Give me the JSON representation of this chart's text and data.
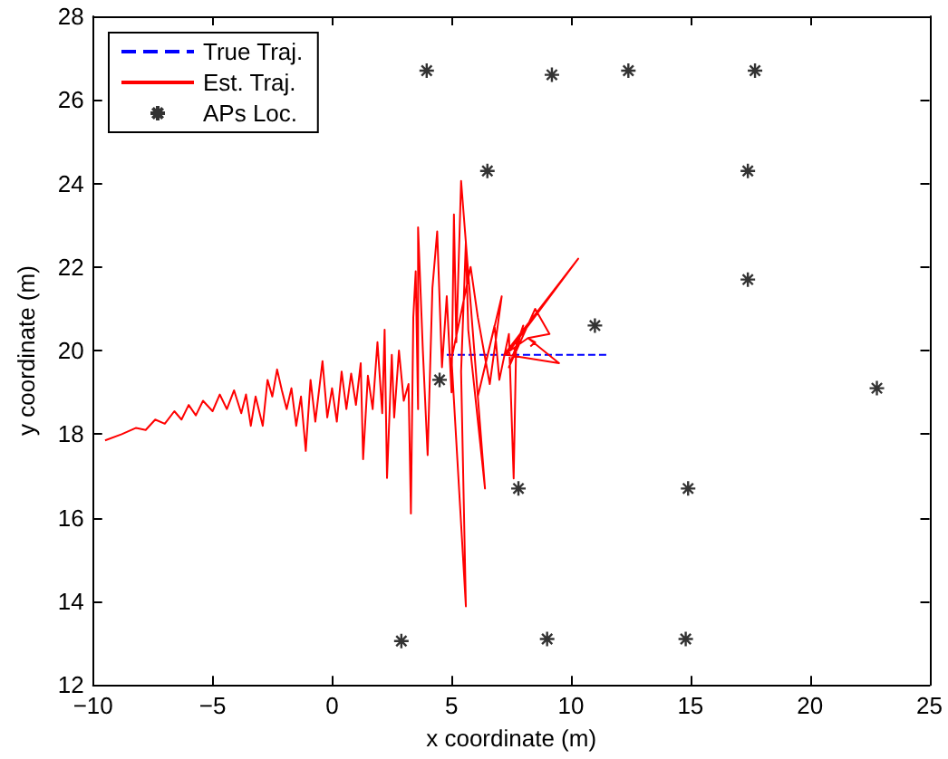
{
  "chart_data": {
    "type": "line",
    "xlabel": "x coordinate (m)",
    "ylabel": "y coordinate (m)",
    "xlim": [
      -10,
      25
    ],
    "xticks": [
      -10,
      -5,
      0,
      5,
      10,
      15,
      20,
      25
    ],
    "ylim": [
      12,
      28
    ],
    "yticks": [
      12,
      14,
      16,
      18,
      20,
      22,
      24,
      26,
      28
    ],
    "grid": false,
    "legend": "top left",
    "series": [
      {
        "name": "True Traj.",
        "color": "#0000ff",
        "line_style": "dashed",
        "marker": "none",
        "x": [
          4.8,
          11.5
        ],
        "values": [
          19.9,
          19.9
        ]
      },
      {
        "name": "Est. Traj.",
        "color": "#ff0000",
        "line_style": "solid",
        "marker": "none",
        "x": [
          -9.5,
          -8.8,
          -8.2,
          -7.8,
          -7.4,
          -7.0,
          -6.6,
          -6.3,
          -6.0,
          -5.7,
          -5.4,
          -5.0,
          -4.7,
          -4.4,
          -4.1,
          -3.8,
          -3.6,
          -3.4,
          -3.2,
          -2.9,
          -2.7,
          -2.5,
          -2.3,
          -2.1,
          -1.9,
          -1.7,
          -1.5,
          -1.3,
          -1.1,
          -0.9,
          -0.7,
          -0.4,
          -0.2,
          0.0,
          0.2,
          0.4,
          0.6,
          0.8,
          1.0,
          1.2,
          1.3,
          1.5,
          1.7,
          1.9,
          2.1,
          2.2,
          2.3,
          2.5,
          2.6,
          2.8,
          3.0,
          3.2,
          3.3,
          3.4,
          3.5,
          3.6,
          3.6,
          3.8,
          4.0,
          4.2,
          4.4,
          4.6,
          4.8,
          5.0,
          5.1,
          5.2,
          5.4,
          6.4,
          5.7,
          5.6,
          5.4,
          5.6,
          5.0,
          5.8,
          6.1,
          6.6,
          7.1,
          6.1,
          6.8,
          7.0,
          7.4,
          7.6,
          7.7,
          8.0,
          7.4,
          8.5,
          9.1,
          8.2,
          9.5,
          7.3,
          10.3,
          7.2,
          8.2,
          8.5,
          8.3
        ],
        "values": [
          17.85,
          18.0,
          18.15,
          18.1,
          18.35,
          18.25,
          18.55,
          18.35,
          18.7,
          18.45,
          18.8,
          18.55,
          18.95,
          18.6,
          19.05,
          18.5,
          18.95,
          18.2,
          18.9,
          18.2,
          19.3,
          18.9,
          19.55,
          19.05,
          18.6,
          19.1,
          18.2,
          18.9,
          17.6,
          19.3,
          18.3,
          19.75,
          18.4,
          19.1,
          18.3,
          19.5,
          18.6,
          19.45,
          18.7,
          19.7,
          17.4,
          19.4,
          18.6,
          20.2,
          18.5,
          20.5,
          16.95,
          19.9,
          18.4,
          20.0,
          18.8,
          19.2,
          16.1,
          20.8,
          21.9,
          18.6,
          22.95,
          20.0,
          17.5,
          21.5,
          22.85,
          19.6,
          21.3,
          19.0,
          23.26,
          20.2,
          24.06,
          16.7,
          20.5,
          22.6,
          19.5,
          13.88,
          19.8,
          22.0,
          20.8,
          19.2,
          21.3,
          18.9,
          20.6,
          19.3,
          20.4,
          16.94,
          20.0,
          20.6,
          19.6,
          21.0,
          20.4,
          20.3,
          19.7,
          19.9,
          22.2,
          19.9,
          20.3,
          20.2,
          20.1
        ]
      },
      {
        "name": "APs Loc.",
        "type": "scatter",
        "color": "#000000",
        "marker": "cross",
        "x": [
          3.96,
          9.2,
          12.4,
          17.7,
          6.5,
          17.4,
          17.4,
          11.0,
          4.5,
          22.8,
          7.8,
          14.9,
          2.9,
          9.0,
          14.8
        ],
        "values": [
          26.7,
          26.6,
          26.7,
          26.7,
          24.3,
          24.3,
          21.7,
          20.6,
          19.3,
          19.1,
          16.7,
          16.7,
          13.05,
          13.1,
          13.1
        ]
      }
    ]
  }
}
